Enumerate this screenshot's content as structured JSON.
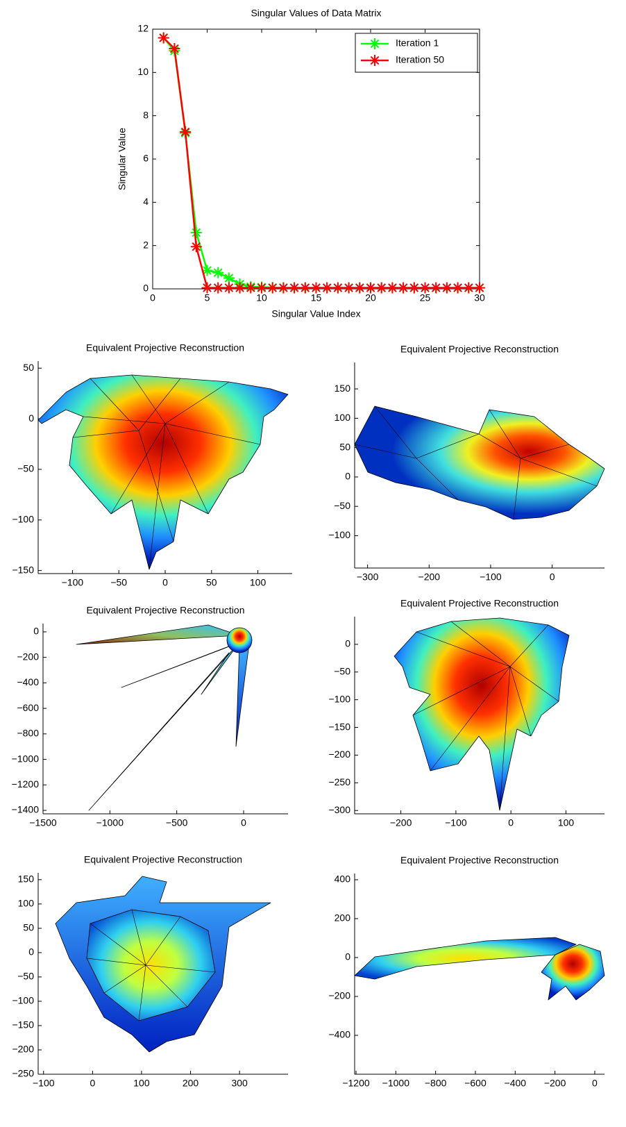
{
  "chart_data": [
    {
      "type": "line",
      "title": "Singular Values of Data Matrix",
      "x_label": "Singular Value Index",
      "y_label": "Singular Value",
      "x": [
        1,
        2,
        3,
        4,
        5,
        6,
        7,
        8,
        9,
        10,
        11,
        12,
        13,
        14,
        15,
        16,
        17,
        18,
        19,
        20,
        21,
        22,
        23,
        24,
        25,
        26,
        27,
        28,
        29,
        30
      ],
      "series": [
        {
          "name": "Iteration 1",
          "color": "#00ff00",
          "values": [
            11.6,
            11.0,
            7.2,
            2.6,
            0.85,
            0.75,
            0.5,
            0.22,
            0.1,
            0.08,
            0.06,
            0.05,
            0.05,
            0.05,
            0.05,
            0.05,
            0.05,
            0.05,
            0.05,
            0.05,
            0.05,
            0.05,
            0.05,
            0.05,
            0.05,
            0.05,
            0.05,
            0.05,
            0.05,
            0.05
          ]
        },
        {
          "name": "Iteration 50",
          "color": "#ff0000",
          "values": [
            11.6,
            11.1,
            7.25,
            1.95,
            0.05,
            0.05,
            0.05,
            0.05,
            0.05,
            0.05,
            0.05,
            0.05,
            0.05,
            0.05,
            0.05,
            0.05,
            0.05,
            0.05,
            0.05,
            0.05,
            0.05,
            0.05,
            0.05,
            0.05,
            0.05,
            0.05,
            0.05,
            0.05,
            0.05,
            0.05
          ]
        }
      ],
      "xlim": [
        0,
        30
      ],
      "ylim": [
        0,
        12
      ],
      "xticks": [
        0,
        5,
        10,
        15,
        20,
        25,
        30
      ],
      "yticks": [
        0,
        2,
        4,
        6,
        8,
        10,
        12
      ],
      "legend": "upper right",
      "box": true
    },
    {
      "type": "mesh",
      "title": "Equivalent Projective Reconstruction",
      "xlim": [
        -137,
        137
      ],
      "ylim": [
        -153,
        57
      ],
      "xticks": [
        {
          "value": -100,
          "label": "−100"
        },
        {
          "value": -50,
          "label": "−50"
        },
        0,
        50,
        100
      ],
      "yticks": [
        {
          "value": -150,
          "label": "−150"
        },
        {
          "value": -100,
          "label": "−100"
        },
        {
          "value": -50,
          "label": "−50"
        },
        0,
        50
      ]
    },
    {
      "type": "mesh",
      "title": "Equivalent Projective Reconstruction",
      "xlim": [
        -321,
        85
      ],
      "ylim": [
        -155,
        195
      ],
      "xticks": [
        {
          "value": -300,
          "label": "−300"
        },
        {
          "value": -200,
          "label": "−200"
        },
        {
          "value": -100,
          "label": "−100"
        },
        0
      ],
      "yticks": [
        {
          "value": -100,
          "label": "−100"
        },
        {
          "value": -50,
          "label": "−50"
        },
        0,
        50,
        100,
        150
      ]
    },
    {
      "type": "mesh",
      "title": "Equivalent Projective Reconstruction",
      "xlim": [
        -1500,
        332
      ],
      "ylim": [
        -1427,
        65
      ],
      "xticks": [
        {
          "value": -1500,
          "label": "−1500"
        },
        {
          "value": -1000,
          "label": "−1000"
        },
        {
          "value": -500,
          "label": "−500"
        },
        0
      ],
      "yticks": [
        {
          "value": -1400,
          "label": "−1400"
        },
        {
          "value": -1200,
          "label": "−1200"
        },
        {
          "value": -1000,
          "label": "−1000"
        },
        {
          "value": -800,
          "label": "−800"
        },
        {
          "value": -600,
          "label": "−600"
        },
        {
          "value": -400,
          "label": "−400"
        },
        {
          "value": -200,
          "label": "−200"
        },
        0
      ]
    },
    {
      "type": "mesh",
      "title": "Equivalent Projective Reconstruction",
      "xlim": [
        -284,
        170
      ],
      "ylim": [
        -306,
        50
      ],
      "xticks": [
        {
          "value": -200,
          "label": "−200"
        },
        {
          "value": -100,
          "label": "−100"
        },
        0,
        100
      ],
      "yticks": [
        {
          "value": -300,
          "label": "−300"
        },
        {
          "value": -250,
          "label": "−250"
        },
        {
          "value": -200,
          "label": "−200"
        },
        {
          "value": -150,
          "label": "−150"
        },
        {
          "value": -100,
          "label": "−100"
        },
        {
          "value": -50,
          "label": "−50"
        },
        0
      ]
    },
    {
      "type": "mesh",
      "title": "Equivalent Projective Reconstruction",
      "xlim": [
        -111,
        399
      ],
      "ylim": [
        -250,
        164
      ],
      "xticks": [
        {
          "value": -100,
          "label": "−100"
        },
        0,
        100,
        200,
        300
      ],
      "yticks": [
        {
          "value": -250,
          "label": "−250"
        },
        {
          "value": -200,
          "label": "−200"
        },
        {
          "value": -150,
          "label": "−150"
        },
        {
          "value": -100,
          "label": "−100"
        },
        {
          "value": -50,
          "label": "−50"
        },
        0,
        50,
        100,
        150
      ]
    },
    {
      "type": "mesh",
      "title": "Equivalent Projective Reconstruction",
      "xlim": [
        -1207,
        49
      ],
      "ylim": [
        -600,
        432
      ],
      "xticks": [
        {
          "value": -1200,
          "label": "−1200"
        },
        {
          "value": -1000,
          "label": "−1000"
        },
        {
          "value": -800,
          "label": "−800"
        },
        {
          "value": -600,
          "label": "−600"
        },
        {
          "value": -400,
          "label": "−400"
        },
        {
          "value": -200,
          "label": "−200"
        },
        0
      ],
      "yticks": [
        {
          "value": -400,
          "label": "−400"
        },
        {
          "value": -200,
          "label": "−200"
        },
        0,
        200,
        400
      ]
    }
  ]
}
